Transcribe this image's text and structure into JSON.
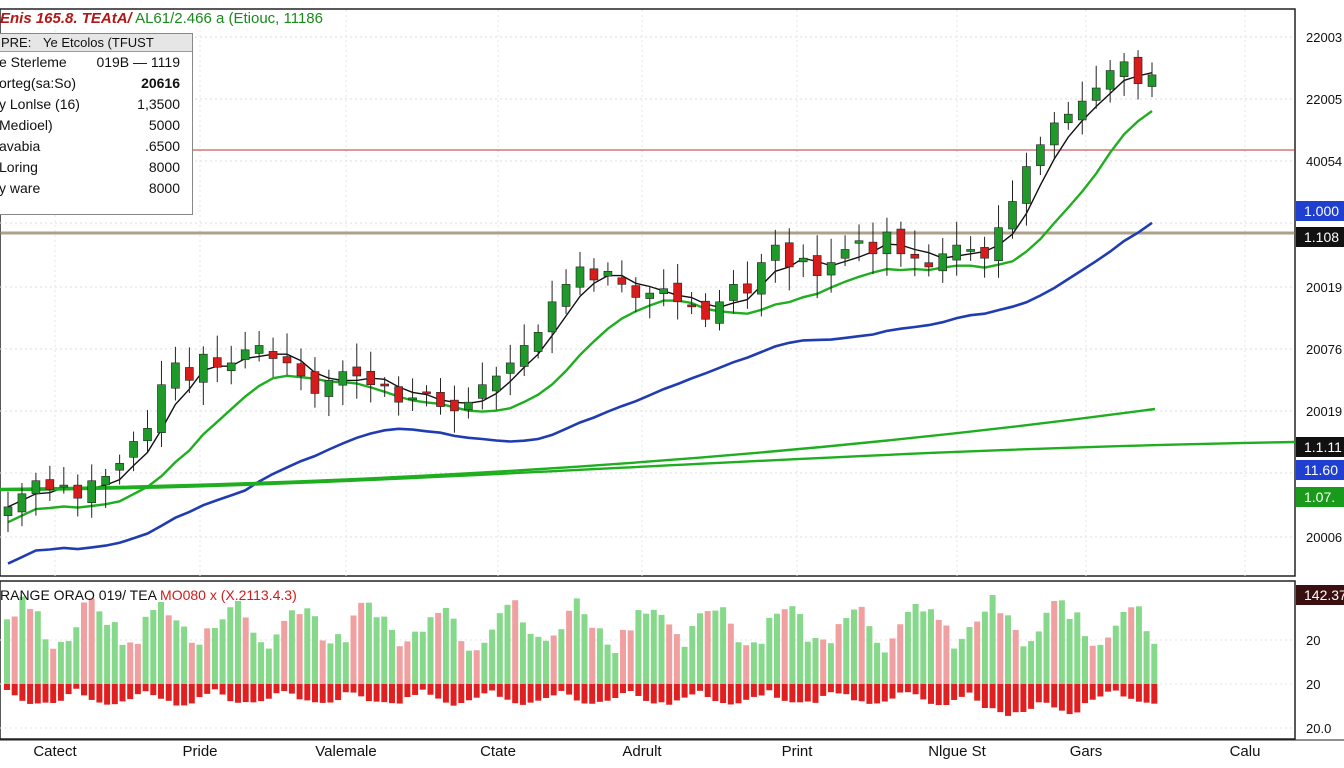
{
  "header": {
    "symbol": "Enis 165.8. TEAtA/",
    "indicators": "AL61/2.466 a (Etiouc, 11186"
  },
  "data_window": {
    "header_left": "PRE:",
    "header_right": "Ye Etcolos (TFUST",
    "rows": [
      {
        "key": "e Sterleme",
        "value": "019B — 1119"
      },
      {
        "key": "orteg(sa:So)",
        "value": "20616"
      },
      {
        "key": "y  Lonlse (16)",
        "value": "1,3500"
      },
      {
        "key": "Medioel)",
        "value": "5000"
      },
      {
        "key": "avabia",
        "value": ".6500"
      },
      {
        "key": "Loring",
        "value": "8000"
      },
      {
        "key": "y ware",
        "value": "8000"
      }
    ]
  },
  "price_badges": [
    {
      "text": "1.000",
      "bg": "#1f3fd0",
      "fg": "#ffffff"
    },
    {
      "text": "1.108",
      "bg": "#111111",
      "fg": "#ffffff"
    },
    {
      "text": "1.1.11",
      "bg": "#111111",
      "fg": "#ffffff"
    },
    {
      "text": "11.60",
      "bg": "#1f3fd0",
      "fg": "#ffffff"
    },
    {
      "text": "1.07.",
      "bg": "#1a9a1a",
      "fg": "#ffffff"
    }
  ],
  "subpanel": {
    "title_black": "RANGE ORAO 019/ TEA",
    "title_red": "MO080 x (X.2113.4.3)",
    "badge": "142.37",
    "badge_bg": "#3a0f0f",
    "y_labels": [
      "20",
      "20",
      "20.0"
    ]
  },
  "colors": {
    "bull": "#1f9a2a",
    "bear": "#d81b1b",
    "ma_fast": "#111111",
    "ma_mid": "#1fae1f",
    "ma_slow": "#1f3cb0",
    "hist_pos": "#86d98a",
    "hist_pos_alt": "#f0a0a0",
    "hist_neg": "#e02020",
    "level_line": "#c03030"
  },
  "chart_data": {
    "type": "candlestick",
    "y_axis_labels": [
      "22003",
      "22005",
      "40054",
      "20019",
      "20076",
      "20019",
      "20006"
    ],
    "x_axis_labels": [
      "Catect",
      "Pride",
      "Valemale",
      "Ctate",
      "Adrult",
      "Print",
      "Nlgue St",
      "Gars",
      "Calu"
    ],
    "grid": true,
    "series": [
      {
        "values": [
          0.3,
          0.6,
          0.9,
          0.7,
          0.8,
          0.5,
          0.9,
          1.0,
          1.3,
          1.8,
          2.1,
          3.1,
          3.6,
          3.2,
          3.8,
          3.5,
          3.6,
          3.9,
          4.0,
          3.7,
          3.6,
          3.3,
          2.9,
          3.2,
          3.4,
          3.3,
          3.1,
          3.1,
          2.7,
          2.8,
          2.9,
          2.6,
          2.5,
          2.7,
          3.1,
          3.3,
          3.6,
          4.0,
          4.3,
          5.0,
          5.4,
          5.8,
          5.5,
          5.7,
          5.4,
          5.1,
          5.2,
          5.3,
          5.0,
          4.9,
          4.6,
          5.0,
          5.4,
          5.2,
          5.9,
          6.3,
          5.8,
          6.0,
          5.6,
          5.9,
          6.2,
          6.4,
          6.1,
          6.6,
          6.1,
          6.0,
          5.8,
          6.1,
          6.3,
          6.2,
          6.0,
          6.7,
          7.3,
          8.1,
          8.6,
          9.1,
          9.3,
          9.6,
          9.9,
          10.3,
          10.5,
          10.0,
          10.2
        ]
      }
    ]
  }
}
